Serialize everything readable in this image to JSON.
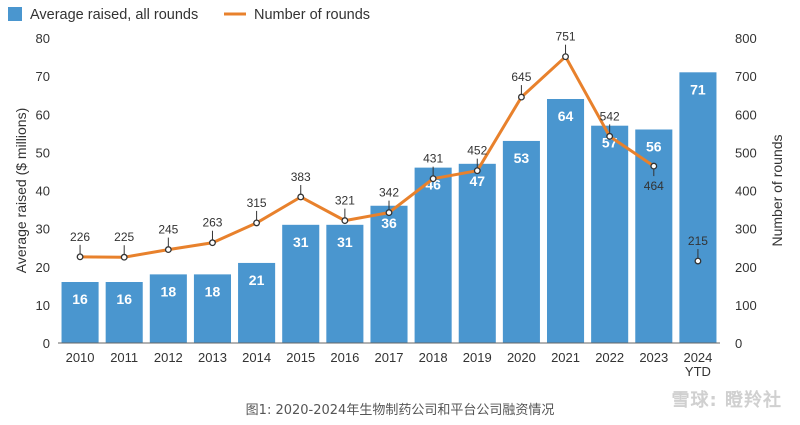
{
  "chart_data": {
    "type": "bar",
    "categories": [
      "2010",
      "2011",
      "2012",
      "2013",
      "2014",
      "2015",
      "2016",
      "2017",
      "2018",
      "2019",
      "2020",
      "2021",
      "2022",
      "2023",
      "2024 YTD"
    ],
    "series": [
      {
        "name": "Average raised, all rounds",
        "type": "bar",
        "axis": "left",
        "color": "#4a96cf",
        "values": [
          16,
          16,
          18,
          18,
          21,
          31,
          31,
          36,
          46,
          47,
          53,
          64,
          57,
          56,
          71
        ]
      },
      {
        "name": "Number of rounds",
        "type": "line",
        "axis": "right",
        "color": "#e8812c",
        "values": [
          226,
          225,
          245,
          263,
          315,
          383,
          321,
          342,
          431,
          452,
          645,
          751,
          542,
          464,
          215
        ]
      }
    ],
    "ylabel": "Average raised ($ millions)",
    "y2label": "Number of rounds",
    "ylim": [
      0,
      80
    ],
    "y2lim": [
      0,
      800
    ],
    "yticks": [
      0,
      10,
      20,
      30,
      40,
      50,
      60,
      70,
      80
    ],
    "y2ticks": [
      0,
      100,
      200,
      300,
      400,
      500,
      600,
      700,
      800
    ],
    "legend": "top-left",
    "grid": false
  },
  "caption": "图1: 2020-2024年生物制药公司和平台公司融资情况",
  "watermark": "雪球: 瞪羚社"
}
